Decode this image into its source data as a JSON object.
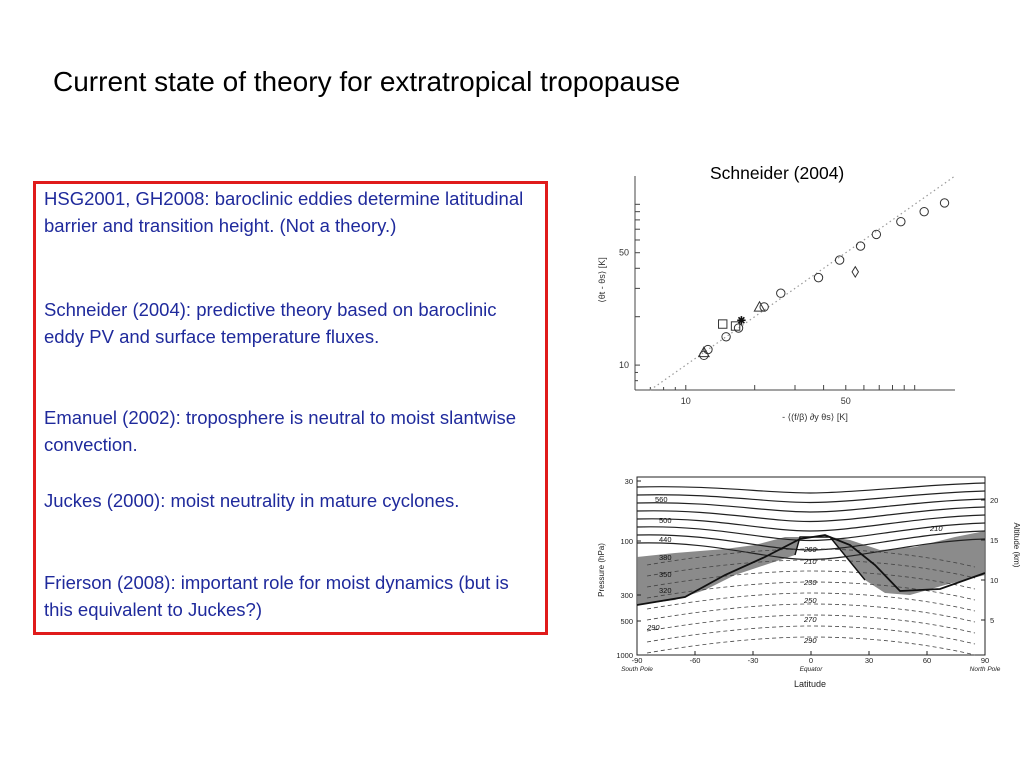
{
  "slide": {
    "title": "Current state of theory for extratropical tropopause",
    "paragraphs": [
      "HSG2001, GH2008: baroclinic eddies determine latitudinal barrier and transition height. (Not a theory.)",
      "Schneider (2004): predictive theory based on baroclinic eddy PV and surface temperature fluxes.",
      "Emanuel (2002): troposphere is neutral to moist slantwise convection.",
      "Juckes (2000): moist neutrality in mature cyclones.",
      "Frierson (2008): important role for moist dynamics (but is this equivalent to Juckes?)"
    ],
    "caption": "Schneider (2004)"
  },
  "chart_data": [
    {
      "type": "scatter",
      "xscale": "log",
      "yscale": "log",
      "xlabel": "- ⟨(f/β) ∂y θs⟩ [K]",
      "ylabel": "⟨θt - θs⟩ [K]",
      "xticks": [
        "10",
        "50"
      ],
      "yticks": [
        "10",
        "50"
      ],
      "xlim": [
        6,
        150
      ],
      "ylim": [
        7,
        150
      ],
      "series": [
        {
          "marker": "circle",
          "points": [
            [
              12,
              11.5
            ],
            [
              12.5,
              12.5
            ],
            [
              15,
              15
            ],
            [
              17,
              17
            ],
            [
              22,
              23
            ],
            [
              26,
              28
            ],
            [
              38,
              35
            ],
            [
              47,
              45
            ],
            [
              58,
              55
            ],
            [
              68,
              65
            ],
            [
              87,
              78
            ],
            [
              110,
              90
            ],
            [
              135,
              102
            ]
          ]
        },
        {
          "marker": "square",
          "points": [
            [
              14.5,
              18
            ],
            [
              16.5,
              17.5
            ]
          ]
        },
        {
          "marker": "triangle",
          "points": [
            [
              12,
              12
            ],
            [
              21,
              23
            ]
          ]
        },
        {
          "marker": "star",
          "points": [
            [
              17.5,
              19
            ]
          ]
        },
        {
          "marker": "diamond",
          "points": [
            [
              55,
              38
            ]
          ]
        }
      ],
      "reference_line": "dotted 1:1"
    },
    {
      "type": "contour",
      "xlabel": "Latitude",
      "ylabel": "Pressure (hPa)",
      "y2label": "Altitude (km)",
      "xticks": [
        "-90",
        "-60",
        "-30",
        "0",
        "30",
        "60",
        "90"
      ],
      "xtick_sublabels": [
        "South Pole",
        "Equator",
        "North Pole"
      ],
      "yticks": [
        "30",
        "100",
        "300",
        "500",
        "1000"
      ],
      "y2ticks": [
        "20",
        "15",
        "10",
        "5"
      ],
      "contour_labels_upper": [
        "560",
        "500",
        "440",
        "380",
        "350",
        "320"
      ],
      "contour_labels_upper_right": [
        "210"
      ],
      "contour_labels_inner": [
        "200",
        "210",
        "230",
        "250",
        "270",
        "290"
      ],
      "contour_labels_lower_left": [
        "290"
      ]
    }
  ]
}
